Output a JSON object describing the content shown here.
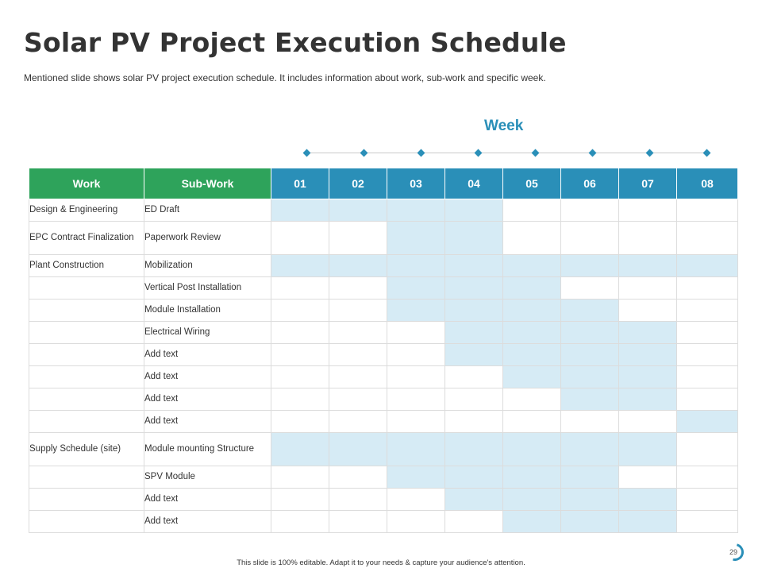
{
  "title": "Solar PV Project Execution Schedule",
  "subtitle": "Mentioned slide shows solar PV project execution schedule. It includes information about work, sub-work and specific week.",
  "week_label": "Week",
  "headers": {
    "work": "Work",
    "subwork": "Sub-Work",
    "weeks": [
      "01",
      "02",
      "03",
      "04",
      "05",
      "06",
      "07",
      "08"
    ]
  },
  "rows": [
    {
      "work": "Design & Engineering",
      "subwork": "ED Draft",
      "weeks": [
        1,
        1,
        1,
        1,
        0,
        0,
        0,
        0
      ]
    },
    {
      "work": "EPC Contract Finalization",
      "subwork": "Paperwork Review",
      "weeks": [
        0,
        0,
        1,
        1,
        0,
        0,
        0,
        0
      ]
    },
    {
      "work": "Plant Construction",
      "subwork": "Mobilization",
      "weeks": [
        1,
        1,
        1,
        1,
        1,
        1,
        1,
        1
      ]
    },
    {
      "work": "",
      "subwork": "Vertical Post Installation",
      "weeks": [
        0,
        0,
        1,
        1,
        1,
        0,
        0,
        0
      ]
    },
    {
      "work": "",
      "subwork": "Module Installation",
      "weeks": [
        0,
        0,
        1,
        1,
        1,
        1,
        0,
        0
      ]
    },
    {
      "work": "",
      "subwork": "Electrical Wiring",
      "weeks": [
        0,
        0,
        0,
        1,
        1,
        1,
        1,
        0
      ]
    },
    {
      "work": "",
      "subwork": "Add text",
      "weeks": [
        0,
        0,
        0,
        1,
        1,
        1,
        1,
        0
      ]
    },
    {
      "work": "",
      "subwork": "Add text",
      "weeks": [
        0,
        0,
        0,
        0,
        1,
        1,
        1,
        0
      ]
    },
    {
      "work": "",
      "subwork": "Add text",
      "weeks": [
        0,
        0,
        0,
        0,
        0,
        1,
        1,
        0
      ]
    },
    {
      "work": "",
      "subwork": "Add text",
      "weeks": [
        0,
        0,
        0,
        0,
        0,
        0,
        0,
        1
      ]
    },
    {
      "work": "Supply Schedule (site)",
      "subwork": "Module mounting Structure",
      "weeks": [
        1,
        1,
        1,
        1,
        1,
        1,
        1,
        0
      ]
    },
    {
      "work": "",
      "subwork": "SPV Module",
      "weeks": [
        0,
        0,
        1,
        1,
        1,
        1,
        0,
        0
      ]
    },
    {
      "work": "",
      "subwork": "Add text",
      "weeks": [
        0,
        0,
        0,
        1,
        1,
        1,
        1,
        0
      ]
    },
    {
      "work": "",
      "subwork": "Add text",
      "weeks": [
        0,
        0,
        0,
        0,
        1,
        1,
        1,
        0
      ]
    }
  ],
  "footer": "This slide is 100% editable. Adapt it to your needs & capture your audience's attention.",
  "page_number": "29",
  "colors": {
    "green_header": "#2ea35b",
    "blue_header": "#2a8fb8",
    "highlight": "#d6ebf5",
    "title": "#333333"
  }
}
